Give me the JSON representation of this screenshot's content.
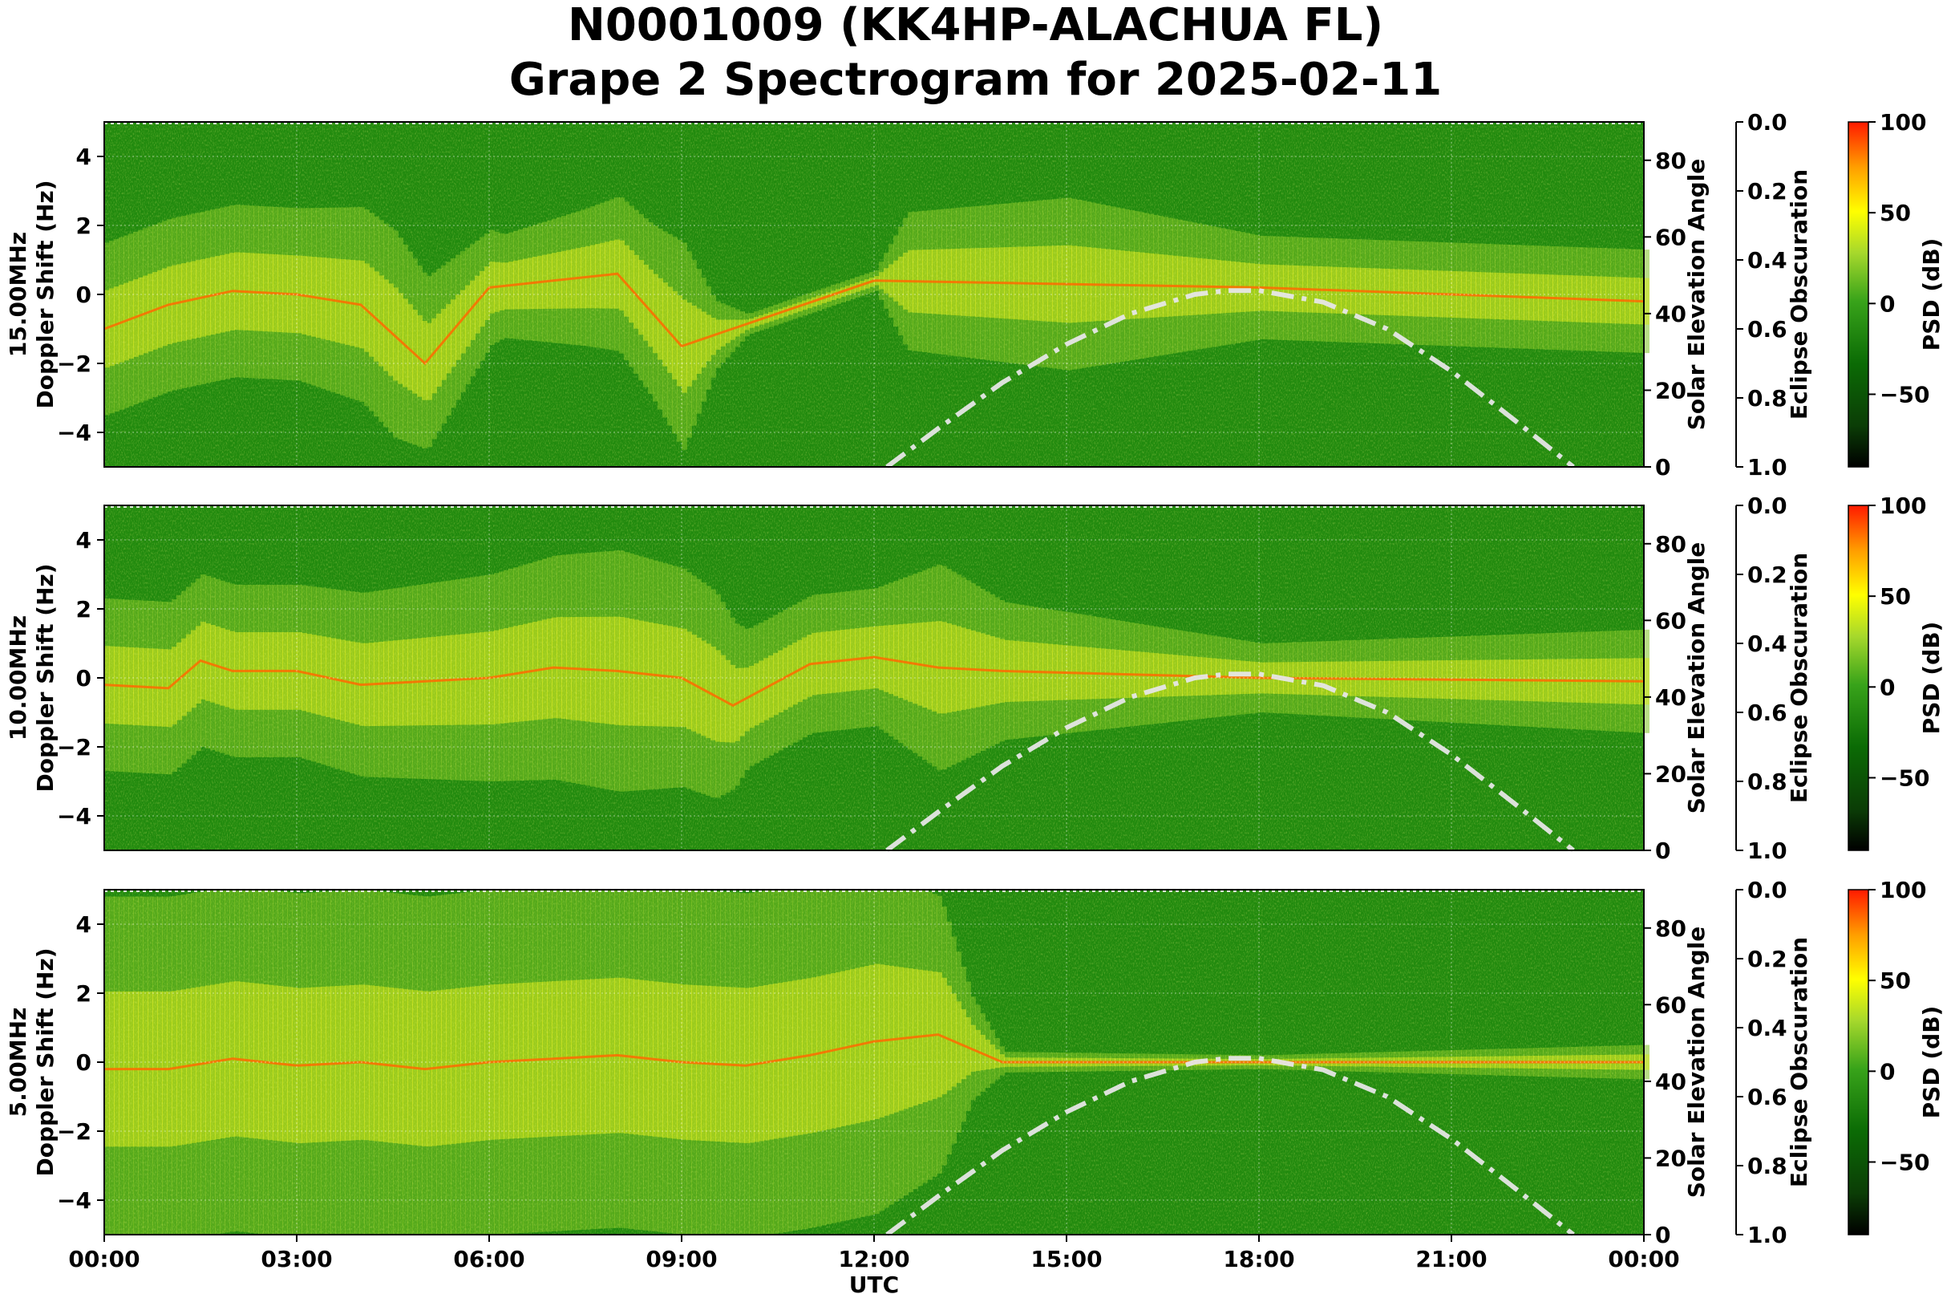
{
  "title_line1": "N0001009 (KK4HP-ALACHUA FL)",
  "title_line2": "Grape 2 Spectrogram for 2025-02-11",
  "xlabel": "UTC",
  "x_ticks": [
    "00:00",
    "03:00",
    "06:00",
    "09:00",
    "12:00",
    "15:00",
    "18:00",
    "21:00",
    "00:00"
  ],
  "colors": {
    "solar_curve": "#e6e6e6",
    "grid": "#ffffff",
    "frame": "#000000"
  },
  "chart_data": [
    {
      "type": "heatmap",
      "panel": "15.00MHz",
      "ylabel": "15.00MHz\nDoppler Shift (Hz)",
      "ylim": [
        -5,
        5
      ],
      "y_ticks": [
        4,
        2,
        0,
        -2,
        -4
      ],
      "xlim_hours": [
        0,
        24
      ],
      "doppler_trace_hz": {
        "hours": [
          0,
          1,
          2,
          3,
          4,
          5,
          6,
          7,
          8,
          9,
          12,
          15,
          18,
          21,
          24
        ],
        "values": [
          -1.0,
          -0.3,
          0.1,
          0.0,
          -0.3,
          -2.0,
          0.2,
          0.4,
          0.6,
          -1.5,
          0.4,
          0.3,
          0.2,
          0.0,
          -0.2
        ]
      },
      "right_axis": {
        "label": "Solar Elevation Angle",
        "ylim": [
          0,
          90
        ],
        "ticks": [
          0,
          20,
          40,
          60,
          80
        ]
      },
      "eclipse_axis": {
        "label": "Eclipse Obscuration",
        "ylim": [
          1.0,
          0.0
        ],
        "ticks": [
          0.0,
          0.2,
          0.4,
          0.6,
          0.8,
          1.0
        ]
      },
      "colorbar": {
        "label": "PSD (dB)",
        "range": [
          -90,
          100
        ],
        "ticks": [
          100,
          50,
          0,
          -50
        ],
        "colors": [
          "#000000",
          "#0b6b05",
          "#38a31a",
          "#a6d82c",
          "#ffff00",
          "#ff9d00",
          "#ff1a00"
        ]
      }
    },
    {
      "type": "heatmap",
      "panel": "10.00MHz",
      "ylabel": "10.00MHz\nDoppler Shift (Hz)",
      "ylim": [
        -5,
        5
      ],
      "y_ticks": [
        4,
        2,
        0,
        -2,
        -4
      ],
      "xlim_hours": [
        0,
        24
      ],
      "doppler_trace_hz": {
        "hours": [
          0,
          1,
          1.5,
          2,
          3,
          4,
          5,
          6,
          7,
          8,
          9,
          9.8,
          11,
          12,
          13,
          14,
          18,
          24
        ],
        "values": [
          -0.2,
          -0.3,
          0.5,
          0.2,
          0.2,
          -0.2,
          -0.1,
          0.0,
          0.3,
          0.2,
          0.0,
          -0.8,
          0.4,
          0.6,
          0.3,
          0.2,
          0.0,
          -0.1
        ]
      },
      "right_axis": {
        "label": "Solar Elevation Angle",
        "ylim": [
          0,
          90
        ],
        "ticks": [
          0,
          20,
          40,
          60,
          80
        ]
      },
      "eclipse_axis": {
        "label": "Eclipse Obscuration",
        "ylim": [
          1.0,
          0.0
        ],
        "ticks": [
          0.0,
          0.2,
          0.4,
          0.6,
          0.8,
          1.0
        ]
      },
      "colorbar": {
        "label": "PSD (dB)",
        "range": [
          -90,
          100
        ],
        "ticks": [
          100,
          50,
          0,
          -50
        ],
        "colors": [
          "#000000",
          "#0b6b05",
          "#38a31a",
          "#a6d82c",
          "#ffff00",
          "#ff9d00",
          "#ff1a00"
        ]
      }
    },
    {
      "type": "heatmap",
      "panel": "5.00MHz",
      "ylabel": "5.00MHz\nDoppler Shift (Hz)",
      "ylim": [
        -5,
        5
      ],
      "y_ticks": [
        4,
        2,
        0,
        -2,
        -4
      ],
      "xlim_hours": [
        0,
        24
      ],
      "doppler_trace_hz": {
        "hours": [
          0,
          1,
          2,
          3,
          4,
          5,
          6,
          7,
          8,
          9,
          10,
          11,
          12,
          13,
          14,
          18,
          24
        ],
        "values": [
          -0.2,
          -0.2,
          0.1,
          -0.1,
          0.0,
          -0.2,
          0.0,
          0.1,
          0.2,
          0.0,
          -0.1,
          0.2,
          0.6,
          0.8,
          0.0,
          0.0,
          0.0
        ]
      },
      "right_axis": {
        "label": "Solar Elevation Angle",
        "ylim": [
          0,
          90
        ],
        "ticks": [
          0,
          20,
          40,
          60,
          80
        ]
      },
      "eclipse_axis": {
        "label": "Eclipse Obscuration",
        "ylim": [
          1.0,
          0.0
        ],
        "ticks": [
          0.0,
          0.2,
          0.4,
          0.6,
          0.8,
          1.0
        ]
      },
      "colorbar": {
        "label": "PSD (dB)",
        "range": [
          -90,
          100
        ],
        "ticks": [
          100,
          50,
          0,
          -50
        ],
        "colors": [
          "#000000",
          "#0b6b05",
          "#38a31a",
          "#a6d82c",
          "#ffff00",
          "#ff9d00",
          "#ff1a00"
        ]
      }
    }
  ],
  "solar_elevation_deg": {
    "hours": [
      12.2,
      13,
      14,
      15,
      16,
      17,
      17.5,
      18,
      19,
      20,
      21,
      22,
      22.9
    ],
    "values": [
      0,
      10,
      22,
      32,
      40,
      45,
      46,
      46,
      43,
      36,
      25,
      12,
      0
    ]
  },
  "activity_hz_spread": {
    "15.00MHz": {
      "hours": [
        0,
        3,
        4.5,
        5,
        6.2,
        7.5,
        8.5,
        9,
        9.5,
        10,
        12,
        12.5,
        15,
        18,
        21,
        24
      ],
      "values": [
        2.5,
        2.5,
        3,
        2.5,
        1.5,
        2,
        2.5,
        3,
        1,
        0.3,
        0.3,
        2,
        2.5,
        1.5,
        1.5,
        1.5
      ]
    },
    "10.00MHz": {
      "hours": [
        0,
        3,
        6,
        8,
        9.5,
        10,
        12,
        13,
        14,
        18,
        24
      ],
      "values": [
        2.5,
        2.5,
        3,
        3.5,
        3,
        2,
        2,
        3,
        2,
        1,
        1.5
      ]
    },
    "5.00MHz": {
      "hours": [
        0,
        3,
        6,
        9,
        12,
        13,
        13.5,
        14,
        18,
        24
      ],
      "values": [
        5,
        5,
        5,
        5,
        5,
        4,
        1.5,
        0.3,
        0.2,
        0.5
      ]
    }
  }
}
